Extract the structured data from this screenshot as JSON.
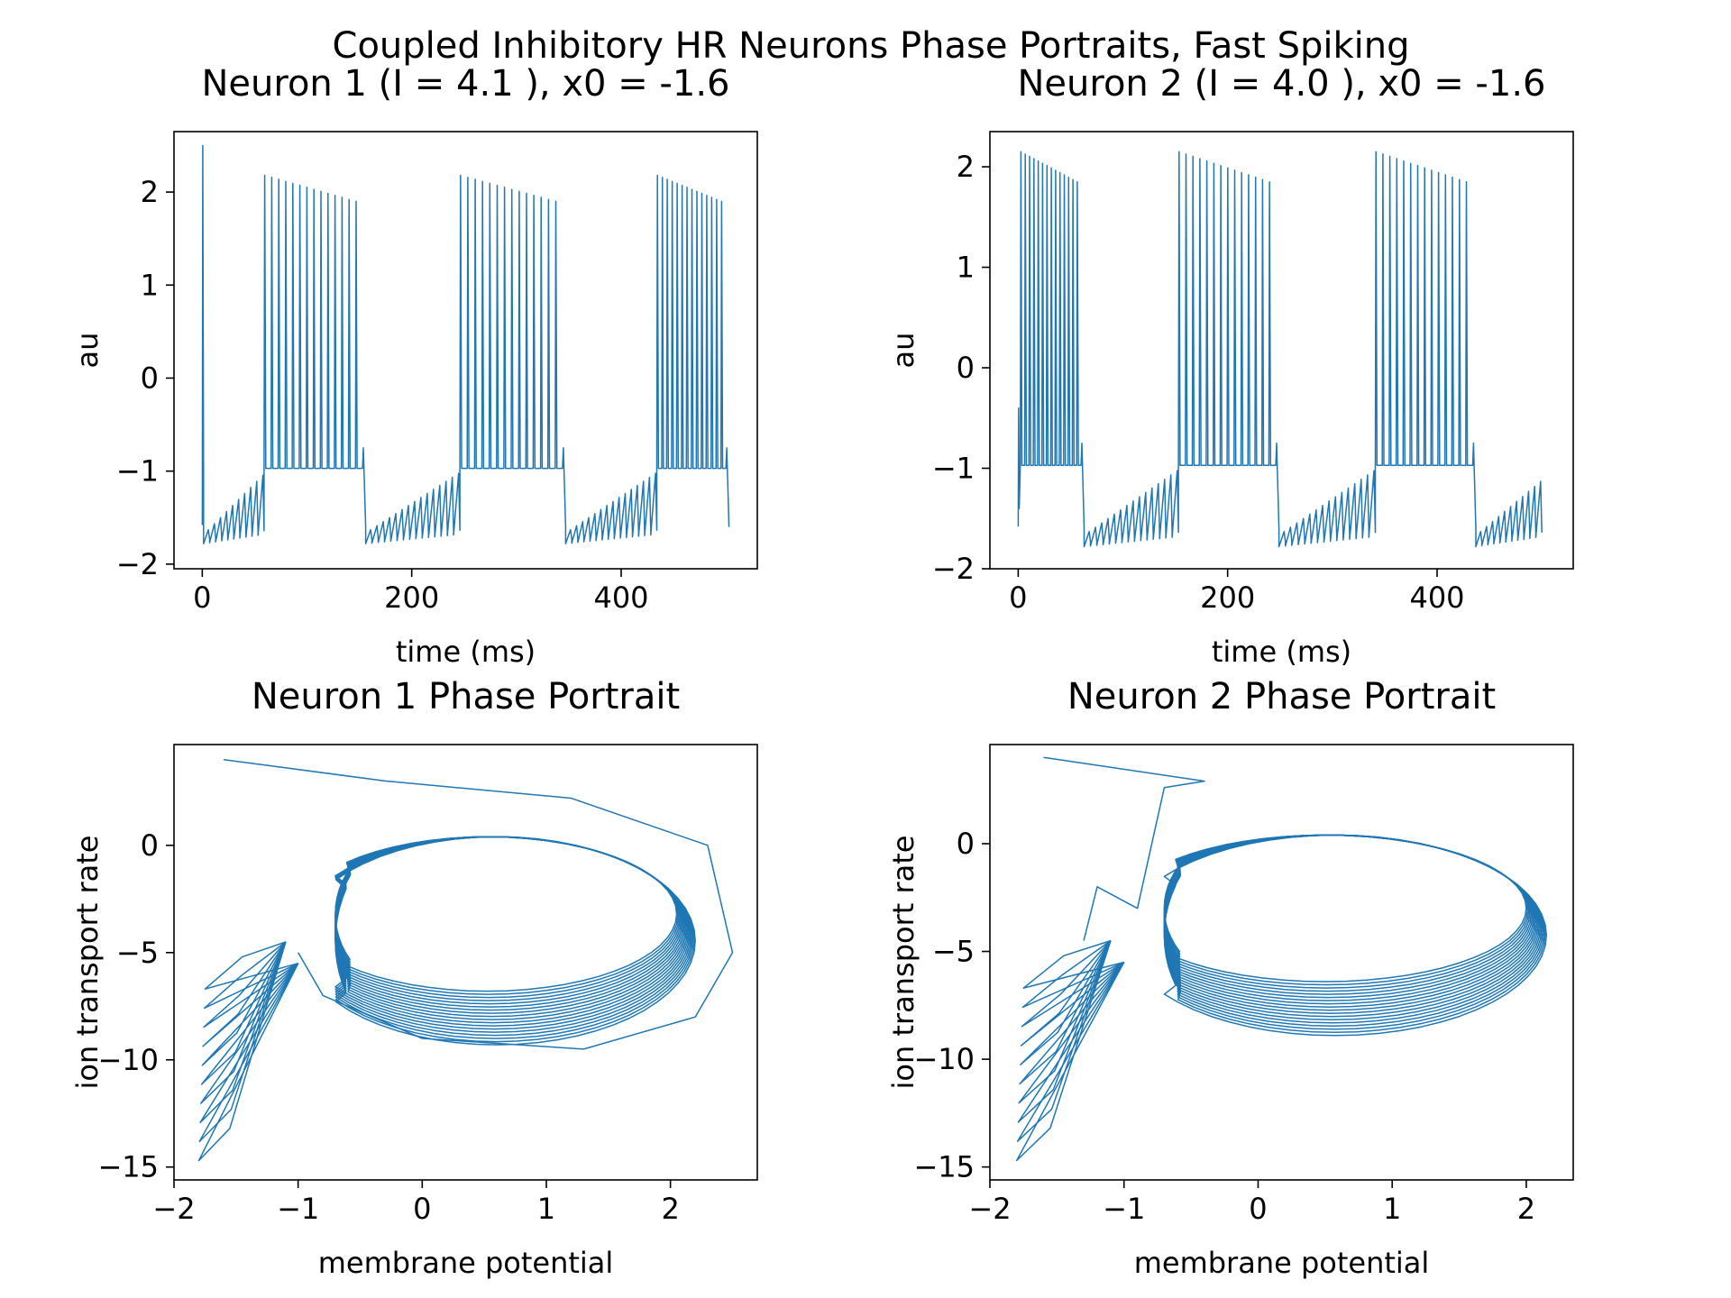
{
  "figure": {
    "suptitle": "Coupled Inhibitory HR Neurons Phase Portraits, Fast Spiking",
    "line_color": "#1f77b4"
  },
  "chart_data": [
    {
      "type": "line",
      "title": "Neuron 1 (I = 4.1 ), x0 = -1.6",
      "xlabel": "time (ms)",
      "ylabel": "au",
      "xlim": [
        -27,
        530
      ],
      "ylim": [
        -2.05,
        2.65
      ],
      "xticks": [
        0,
        200,
        400
      ],
      "yticks": [
        -2,
        -1,
        0,
        1,
        2
      ],
      "xtick_labels": [
        "0",
        "200",
        "400"
      ],
      "ytick_labels": [
        "−2",
        "−1",
        "0",
        "1",
        "2"
      ],
      "series": [
        {
          "params": {
            "current": 4.1,
            "x0": -1.6
          },
          "bursts": [
            [
              59,
              153
            ],
            [
              246,
              344
            ],
            [
              434,
              500
            ]
          ],
          "first_spike_peak": 2.5,
          "burst_peak_start": 2.18,
          "burst_peak_end": 1.9,
          "spike_trough": -0.97,
          "quiescent_min": -1.78,
          "duration_ms": 500
        }
      ]
    },
    {
      "type": "line",
      "title": "Neuron 2 (I = 4.0 ), x0 = -1.6",
      "xlabel": "time (ms)",
      "ylabel": "au",
      "xlim": [
        -27,
        530
      ],
      "ylim": [
        -2.0,
        2.35
      ],
      "xticks": [
        0,
        200,
        400
      ],
      "yticks": [
        -2,
        -1,
        0,
        1,
        2
      ],
      "xtick_labels": [
        "0",
        "200",
        "400"
      ],
      "ytick_labels": [
        "−2",
        "−1",
        "0",
        "1",
        "2"
      ],
      "series": [
        {
          "params": {
            "current": 4.0,
            "x0": -1.6
          },
          "bursts": [
            [
              2,
              60
            ],
            [
              153,
              246
            ],
            [
              341,
              434
            ]
          ],
          "burst_peak_start": 2.15,
          "burst_peak_end": 1.85,
          "spike_trough": -0.97,
          "quiescent_min": -1.78,
          "duration_ms": 500
        }
      ]
    },
    {
      "type": "line",
      "title": "Neuron 1 Phase Portrait",
      "xlabel": "membrane potential",
      "ylabel": "ion transport rate",
      "xlim": [
        -2.0,
        2.7
      ],
      "ylim": [
        -15.6,
        4.7
      ],
      "xticks": [
        -2,
        -1,
        0,
        1,
        2
      ],
      "yticks": [
        -15,
        -10,
        -5,
        0
      ],
      "xtick_labels": [
        "−2",
        "−1",
        "0",
        "1",
        "2"
      ],
      "ytick_labels": [
        "−15",
        "−10",
        "−5",
        "0"
      ],
      "series": [
        {
          "start": [
            -1.6,
            4.0
          ],
          "outer_excursion": [
            2.5,
            -5.0
          ],
          "loop_x_range": [
            -1.0,
            2.2
          ],
          "loop_y_range": [
            -9.3,
            0.4
          ],
          "tail_min": [
            -1.8,
            -14.7
          ]
        }
      ]
    },
    {
      "type": "line",
      "title": "Neuron 2 Phase Portrait",
      "xlabel": "membrane potential",
      "ylabel": "ion transport rate",
      "xlim": [
        -2.0,
        2.35
      ],
      "ylim": [
        -15.6,
        4.6
      ],
      "xticks": [
        -2,
        -1,
        0,
        1,
        2
      ],
      "yticks": [
        -15,
        -10,
        -5,
        0
      ],
      "xtick_labels": [
        "−2",
        "−1",
        "0",
        "1",
        "2"
      ],
      "ytick_labels": [
        "−15",
        "−10",
        "−5",
        "0"
      ],
      "series": [
        {
          "start": [
            -1.6,
            4.0
          ],
          "kink": [
            -0.4,
            2.9
          ],
          "loop_x_range": [
            -1.0,
            2.15
          ],
          "loop_y_range": [
            -8.9,
            0.4
          ],
          "tail_min": [
            -1.8,
            -14.7
          ]
        }
      ]
    }
  ]
}
